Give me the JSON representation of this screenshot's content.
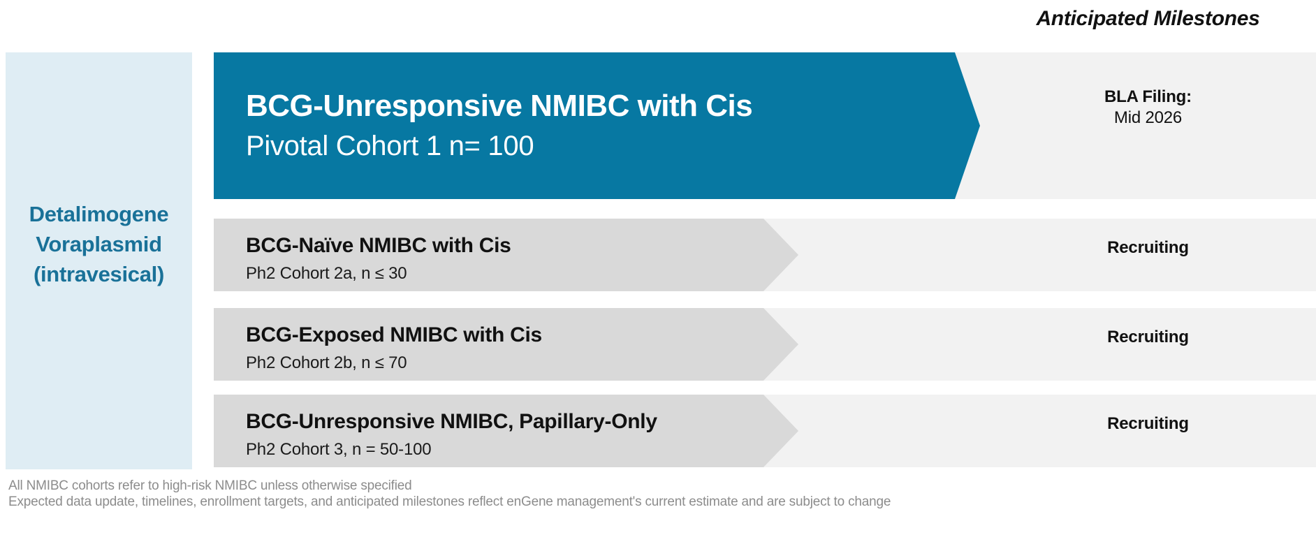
{
  "slide": {
    "milestones_header": "Anticipated Milestones",
    "program": {
      "name": "Detalimogene Voraplasmid (intravesical)",
      "route": "intravesical"
    },
    "rows": [
      {
        "title": "BCG-Unresponsive NMIBC with Cis",
        "subtitle": "Pivotal Cohort 1 n= 100",
        "milestone_label": "BLA Filing:",
        "milestone_value": "Mid 2026",
        "highlight": true
      },
      {
        "title": "BCG-Naïve NMIBC with Cis",
        "subtitle": "Ph2 Cohort 2a, n ≤ 30",
        "milestone_label": "Recruiting",
        "milestone_value": "",
        "highlight": false
      },
      {
        "title": "BCG-Exposed NMIBC with Cis",
        "subtitle": "Ph2 Cohort 2b, n ≤ 70",
        "milestone_label": "Recruiting",
        "milestone_value": "",
        "highlight": false
      },
      {
        "title": "BCG-Unresponsive NMIBC, Papillary-Only",
        "subtitle": "Ph2 Cohort 3, n = 50-100",
        "milestone_label": "Recruiting",
        "milestone_value": "",
        "highlight": false
      }
    ],
    "footnotes": [
      "All NMIBC cohorts refer to high-risk NMIBC unless otherwise specified",
      "Expected data update, timelines, enrollment targets, and anticipated milestones reflect enGene management's current estimate and are subject to change"
    ],
    "colors": {
      "accent_teal": "#0778a2",
      "program_box_bg": "#dfedf4",
      "program_text": "#197198",
      "arrow_gray": "#d9d9d9",
      "band_gray": "#f2f2f2",
      "milestone_text": "#111111",
      "footnote_gray": "#8c8c8c"
    }
  }
}
